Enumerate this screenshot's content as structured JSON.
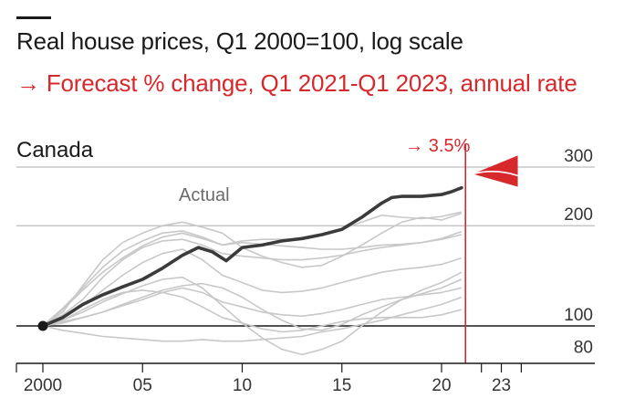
{
  "header": {
    "title": "Real house prices, Q1 2000=100, log scale",
    "subtitle": "→ Forecast % change, Q1 2021-Q1 2023, annual rate"
  },
  "colors": {
    "accent": "#d7282b",
    "main_series": "#3b3b3b",
    "other_series": "#c8c8c8",
    "grid": "#bdbdbd",
    "baseline": "#1a1a1a"
  },
  "chart_data": {
    "type": "line",
    "panel_title": "Canada",
    "log_scale": true,
    "ylim": [
      72,
      330
    ],
    "xlim": [
      1999.5,
      2024
    ],
    "y_ticks": [
      300,
      200,
      100,
      80
    ],
    "x_ticks": [
      {
        "value": 2000,
        "label": "2000"
      },
      {
        "value": 2005,
        "label": "05"
      },
      {
        "value": 2010,
        "label": "10"
      },
      {
        "value": 2015,
        "label": "15"
      },
      {
        "value": 2020,
        "label": "20"
      },
      {
        "value": 2023,
        "label": "23"
      }
    ],
    "x_minor_ticks": [
      2022,
      2024
    ],
    "forecast_start": 2021.2,
    "forecast_end": 2023,
    "forecast_label": "→ 3.5%",
    "forecast_annual_rate": 3.5,
    "forecast_fan": {
      "start_value": 272,
      "end_upper": 325,
      "end_lower": 262
    },
    "annotation": "Actual",
    "main_series": {
      "name": "Canada",
      "points": [
        [
          2000,
          100
        ],
        [
          2001,
          106
        ],
        [
          2002,
          116
        ],
        [
          2003,
          124
        ],
        [
          2004,
          131
        ],
        [
          2005,
          138
        ],
        [
          2006,
          149
        ],
        [
          2007,
          163
        ],
        [
          2007.8,
          172
        ],
        [
          2008.5,
          167
        ],
        [
          2009.2,
          157
        ],
        [
          2010,
          172
        ],
        [
          2011,
          175
        ],
        [
          2012,
          180
        ],
        [
          2013,
          183
        ],
        [
          2014,
          188
        ],
        [
          2015,
          195
        ],
        [
          2016,
          212
        ],
        [
          2017,
          234
        ],
        [
          2017.5,
          243
        ],
        [
          2018,
          245
        ],
        [
          2019,
          245
        ],
        [
          2020,
          248
        ],
        [
          2020.5,
          253
        ],
        [
          2021,
          260
        ]
      ]
    },
    "other_series": [
      {
        "points": [
          [
            2000,
            100
          ],
          [
            2001,
            110
          ],
          [
            2002,
            132
          ],
          [
            2003,
            158
          ],
          [
            2004,
            178
          ],
          [
            2005,
            190
          ],
          [
            2006,
            200
          ],
          [
            2007,
            205
          ],
          [
            2008,
            198
          ],
          [
            2009,
            190
          ],
          [
            2010,
            172
          ],
          [
            2011,
            162
          ],
          [
            2012,
            155
          ],
          [
            2013,
            150
          ],
          [
            2014,
            152
          ],
          [
            2015,
            162
          ],
          [
            2016,
            175
          ],
          [
            2017,
            190
          ],
          [
            2018,
            205
          ],
          [
            2019,
            212
          ],
          [
            2020,
            208
          ],
          [
            2021,
            218
          ]
        ]
      },
      {
        "points": [
          [
            2000,
            100
          ],
          [
            2001,
            112
          ],
          [
            2002,
            128
          ],
          [
            2003,
            145
          ],
          [
            2004,
            160
          ],
          [
            2005,
            174
          ],
          [
            2006,
            185
          ],
          [
            2007,
            190
          ],
          [
            2008,
            183
          ],
          [
            2009,
            175
          ],
          [
            2010,
            180
          ],
          [
            2011,
            182
          ],
          [
            2012,
            182
          ],
          [
            2013,
            183
          ],
          [
            2014,
            188
          ],
          [
            2015,
            195
          ],
          [
            2016,
            205
          ],
          [
            2017,
            215
          ],
          [
            2018,
            212
          ],
          [
            2019,
            210
          ],
          [
            2020,
            213
          ],
          [
            2021,
            220
          ]
        ]
      },
      {
        "points": [
          [
            2000,
            100
          ],
          [
            2001,
            113
          ],
          [
            2002,
            130
          ],
          [
            2003,
            150
          ],
          [
            2004,
            168
          ],
          [
            2005,
            180
          ],
          [
            2006,
            190
          ],
          [
            2007,
            193
          ],
          [
            2008,
            185
          ],
          [
            2009,
            175
          ],
          [
            2010,
            178
          ],
          [
            2011,
            176
          ],
          [
            2012,
            174
          ],
          [
            2013,
            172
          ],
          [
            2014,
            170
          ],
          [
            2015,
            170
          ],
          [
            2016,
            172
          ],
          [
            2017,
            175
          ],
          [
            2018,
            176
          ],
          [
            2019,
            178
          ],
          [
            2020,
            182
          ],
          [
            2021,
            188
          ]
        ]
      },
      {
        "points": [
          [
            2000,
            100
          ],
          [
            2001,
            108
          ],
          [
            2002,
            120
          ],
          [
            2003,
            140
          ],
          [
            2004,
            158
          ],
          [
            2005,
            172
          ],
          [
            2006,
            180
          ],
          [
            2007,
            182
          ],
          [
            2008,
            175
          ],
          [
            2009,
            165
          ],
          [
            2010,
            162
          ],
          [
            2011,
            160
          ],
          [
            2012,
            158
          ],
          [
            2013,
            158
          ],
          [
            2014,
            160
          ],
          [
            2015,
            163
          ],
          [
            2016,
            168
          ],
          [
            2017,
            172
          ],
          [
            2018,
            175
          ],
          [
            2019,
            178
          ],
          [
            2020,
            183
          ],
          [
            2021,
            192
          ]
        ]
      },
      {
        "points": [
          [
            2000,
            100
          ],
          [
            2001,
            106
          ],
          [
            2002,
            115
          ],
          [
            2003,
            128
          ],
          [
            2004,
            142
          ],
          [
            2005,
            155
          ],
          [
            2006,
            165
          ],
          [
            2007,
            170
          ],
          [
            2008,
            158
          ],
          [
            2009,
            142
          ],
          [
            2010,
            135
          ],
          [
            2011,
            128
          ],
          [
            2012,
            126
          ],
          [
            2013,
            127
          ],
          [
            2014,
            130
          ],
          [
            2015,
            135
          ],
          [
            2016,
            140
          ],
          [
            2017,
            145
          ],
          [
            2018,
            148
          ],
          [
            2019,
            150
          ],
          [
            2020,
            153
          ],
          [
            2021,
            160
          ]
        ]
      },
      {
        "points": [
          [
            2000,
            100
          ],
          [
            2001,
            104
          ],
          [
            2002,
            110
          ],
          [
            2003,
            118
          ],
          [
            2004,
            125
          ],
          [
            2005,
            132
          ],
          [
            2006,
            138
          ],
          [
            2007,
            140
          ],
          [
            2008,
            130
          ],
          [
            2009,
            115
          ],
          [
            2010,
            102
          ],
          [
            2011,
            92
          ],
          [
            2012,
            85
          ],
          [
            2013,
            82
          ],
          [
            2014,
            85
          ],
          [
            2015,
            90
          ],
          [
            2016,
            100
          ],
          [
            2017,
            110
          ],
          [
            2018,
            120
          ],
          [
            2019,
            128
          ],
          [
            2020,
            135
          ],
          [
            2021,
            145
          ]
        ]
      },
      {
        "points": [
          [
            2000,
            100
          ],
          [
            2001,
            102
          ],
          [
            2002,
            106
          ],
          [
            2003,
            110
          ],
          [
            2004,
            116
          ],
          [
            2005,
            122
          ],
          [
            2006,
            128
          ],
          [
            2007,
            132
          ],
          [
            2008,
            134
          ],
          [
            2009,
            130
          ],
          [
            2010,
            122
          ],
          [
            2011,
            112
          ],
          [
            2012,
            104
          ],
          [
            2013,
            98
          ],
          [
            2014,
            97
          ],
          [
            2015,
            101
          ],
          [
            2016,
            108
          ],
          [
            2017,
            114
          ],
          [
            2018,
            120
          ],
          [
            2019,
            125
          ],
          [
            2020,
            130
          ],
          [
            2021,
            138
          ]
        ]
      },
      {
        "points": [
          [
            2000,
            100
          ],
          [
            2001,
            103
          ],
          [
            2002,
            106
          ],
          [
            2003,
            110
          ],
          [
            2004,
            115
          ],
          [
            2005,
            120
          ],
          [
            2006,
            126
          ],
          [
            2007,
            130
          ],
          [
            2008,
            126
          ],
          [
            2009,
            118
          ],
          [
            2010,
            114
          ],
          [
            2011,
            110
          ],
          [
            2012,
            108
          ],
          [
            2013,
            107
          ],
          [
            2014,
            109
          ],
          [
            2015,
            112
          ],
          [
            2016,
            116
          ],
          [
            2017,
            120
          ],
          [
            2018,
            122
          ],
          [
            2019,
            124
          ],
          [
            2020,
            126
          ],
          [
            2021,
            130
          ]
        ]
      },
      {
        "points": [
          [
            2000,
            100
          ],
          [
            2001,
            97
          ],
          [
            2002,
            95
          ],
          [
            2003,
            93
          ],
          [
            2004,
            92
          ],
          [
            2005,
            91
          ],
          [
            2006,
            90
          ],
          [
            2007,
            90
          ],
          [
            2008,
            91
          ],
          [
            2009,
            90
          ],
          [
            2010,
            90
          ],
          [
            2011,
            91
          ],
          [
            2012,
            92
          ],
          [
            2013,
            93
          ],
          [
            2014,
            96
          ],
          [
            2015,
            98
          ],
          [
            2016,
            101
          ],
          [
            2017,
            104
          ],
          [
            2018,
            108
          ],
          [
            2019,
            112
          ],
          [
            2020,
            116
          ],
          [
            2021,
            122
          ]
        ]
      },
      {
        "points": [
          [
            2000,
            100
          ],
          [
            2001,
            104
          ],
          [
            2002,
            112
          ],
          [
            2003,
            120
          ],
          [
            2004,
            126
          ],
          [
            2005,
            128
          ],
          [
            2006,
            126
          ],
          [
            2007,
            122
          ],
          [
            2008,
            114
          ],
          [
            2009,
            106
          ],
          [
            2010,
            102
          ],
          [
            2011,
            98
          ],
          [
            2012,
            96
          ],
          [
            2013,
            97
          ],
          [
            2014,
            100
          ],
          [
            2015,
            103
          ],
          [
            2016,
            105
          ],
          [
            2017,
            106
          ],
          [
            2018,
            106
          ],
          [
            2019,
            106
          ],
          [
            2020,
            108
          ],
          [
            2021,
            112
          ]
        ]
      }
    ]
  }
}
